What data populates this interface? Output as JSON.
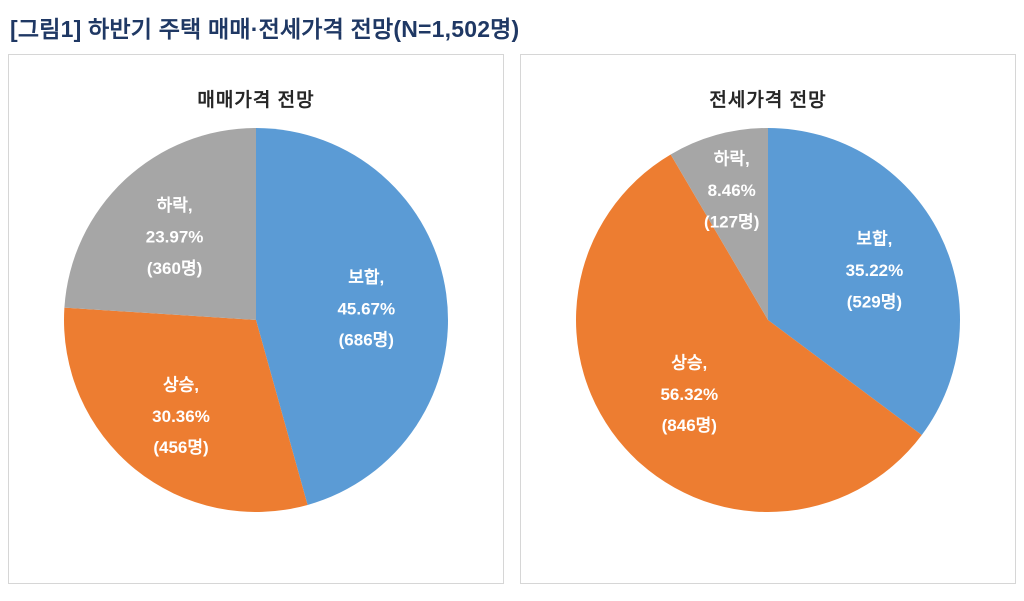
{
  "title": "[그림1] 하반기 주택 매매·전세가격 전망(N=1,502명)",
  "colors": {
    "flat_blue": "#5B9BD5",
    "rise_orange": "#ED7D31",
    "fall_gray": "#A6A6A6",
    "title_navy": "#1F3864"
  },
  "chart_data": [
    {
      "type": "pie",
      "title": "매매가격 전망",
      "start_angle": 0,
      "direction": "clockwise",
      "legend": "none",
      "label_style": "inside, white bold, name/percent/count on three lines",
      "segments": [
        {
          "label": "보합",
          "percent": 45.67,
          "count": 686,
          "count_unit": "명",
          "color": "#5B9BD5",
          "label_radius": 0.58
        },
        {
          "label": "상승",
          "percent": 30.36,
          "count": 456,
          "count_unit": "명",
          "color": "#ED7D31",
          "label_radius": 0.62
        },
        {
          "label": "하락",
          "percent": 23.97,
          "count": 360,
          "count_unit": "명",
          "color": "#A6A6A6",
          "label_radius": 0.62
        }
      ]
    },
    {
      "type": "pie",
      "title": "전세가격 전망",
      "start_angle": 0,
      "direction": "clockwise",
      "legend": "none",
      "label_style": "inside, white bold, name/percent/count on three lines",
      "segments": [
        {
          "label": "보합",
          "percent": 35.22,
          "count": 529,
          "count_unit": "명",
          "color": "#5B9BD5",
          "label_radius": 0.62
        },
        {
          "label": "상승",
          "percent": 56.32,
          "count": 846,
          "count_unit": "명",
          "color": "#ED7D31",
          "label_radius": 0.55
        },
        {
          "label": "하락",
          "percent": 8.46,
          "count": 127,
          "count_unit": "명",
          "color": "#A6A6A6",
          "label_radius": 0.72
        }
      ]
    }
  ]
}
